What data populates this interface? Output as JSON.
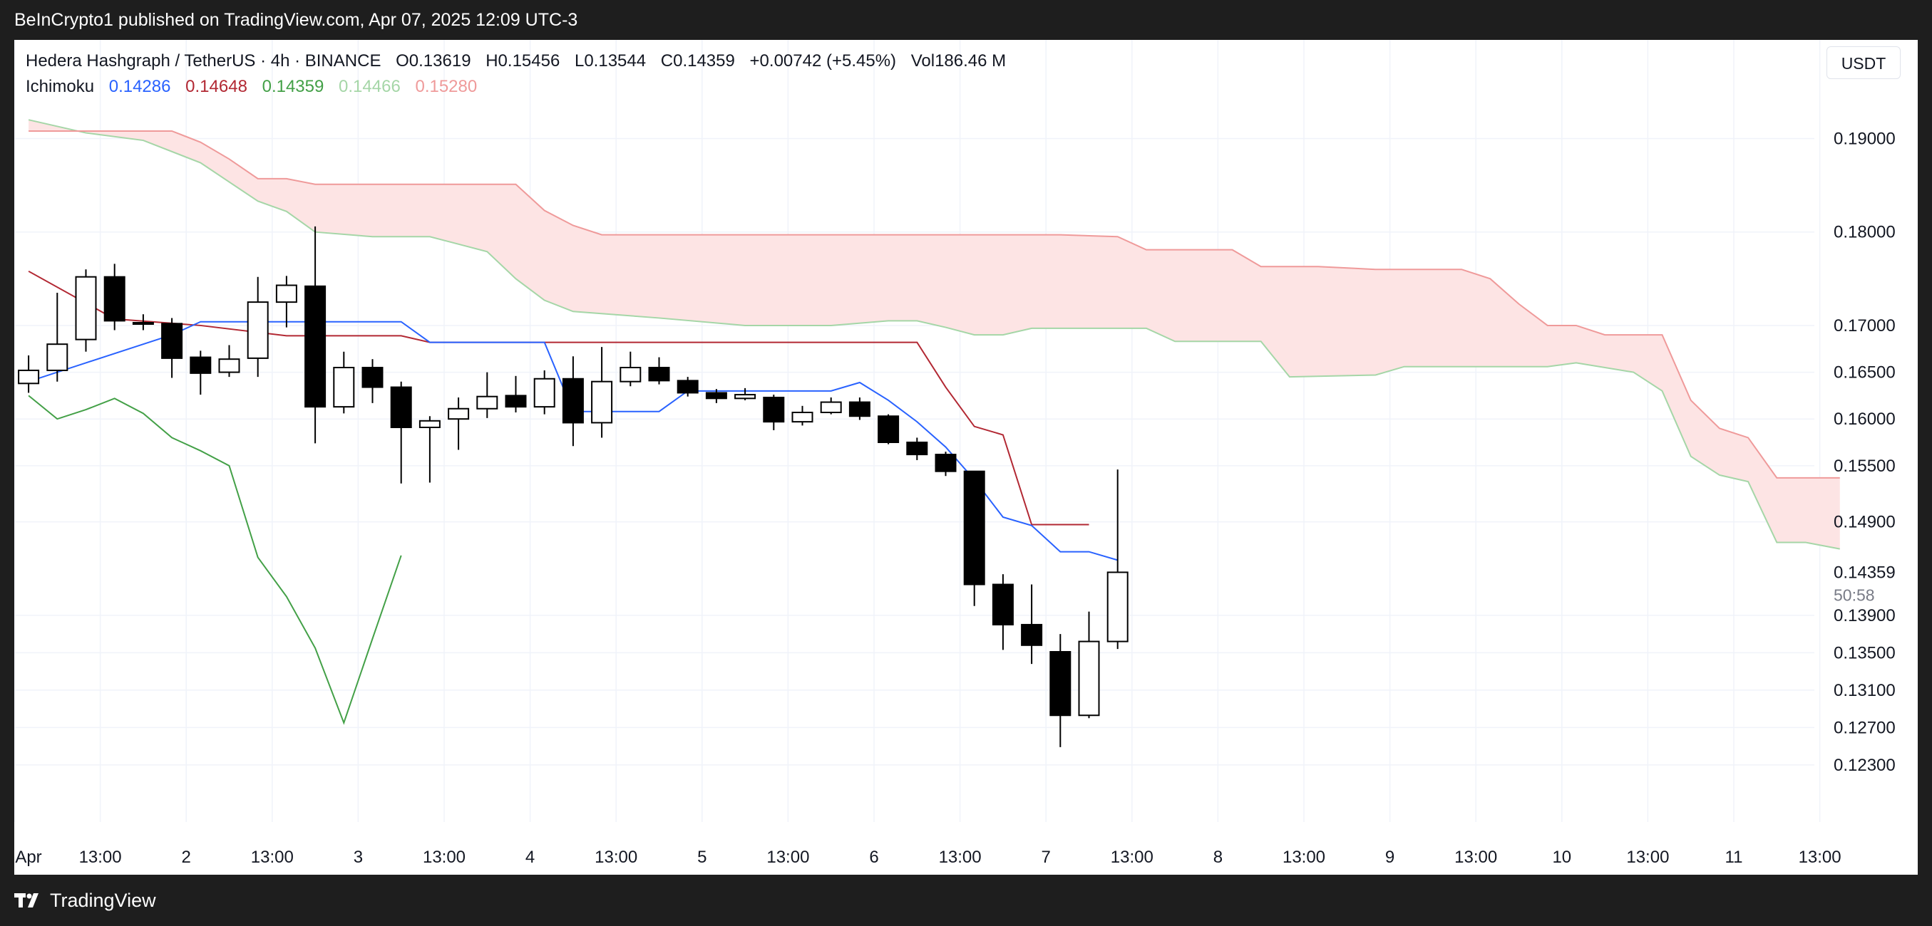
{
  "header": {
    "publish_info": "BeInCrypto1 published on TradingView.com, Apr 07, 2025 12:09 UTC-3"
  },
  "footer": {
    "brand": "TradingView",
    "brand_icon": "tradingview-logo-icon"
  },
  "legend": {
    "symbol": "Hedera Hashgraph / TetherUS · 4h · BINANCE",
    "open": "O0.13619",
    "high": "H0.15456",
    "low": "L0.13544",
    "close": "C0.14359",
    "change": "+0.00742 (+5.45%)",
    "volume": "Vol186.46 M",
    "indicator": "Ichimoku",
    "values": [
      "0.14286",
      "0.14648",
      "0.14359",
      "0.14466",
      "0.15280"
    ]
  },
  "currency_button": "USDT",
  "colors": {
    "conversion": "#2962ff",
    "base": "#b22833",
    "lagging": "#43a047",
    "span_a": "#a5d6a7",
    "span_b": "#ef9a9a",
    "cloud_fill": "#fde4e4",
    "candle_up": "#ffffff",
    "candle_down": "#000000"
  },
  "chart_data": {
    "type": "candlestick",
    "yaxis_ticks": [
      "0.19000",
      "0.18000",
      "0.17000",
      "0.16500",
      "0.16000",
      "0.15500",
      "0.14900",
      "0.13900",
      "0.13500",
      "0.13100",
      "0.12700",
      "0.12300"
    ],
    "ylim": [
      0.1175,
      0.1975
    ],
    "price_label": "0.14359",
    "countdown": "50:58",
    "xaxis_ticks": [
      {
        "label": "Apr",
        "x": -0.5
      },
      {
        "label": "13:00",
        "x": 2.5
      },
      {
        "label": "2",
        "x": 5.5
      },
      {
        "label": "13:00",
        "x": 8.5
      },
      {
        "label": "3",
        "x": 11.5
      },
      {
        "label": "13:00",
        "x": 14.5
      },
      {
        "label": "4",
        "x": 17.5
      },
      {
        "label": "13:00",
        "x": 20.5
      },
      {
        "label": "5",
        "x": 23.5
      },
      {
        "label": "13:00",
        "x": 26.5
      },
      {
        "label": "6",
        "x": 29.5
      },
      {
        "label": "13:00",
        "x": 32.5
      },
      {
        "label": "7",
        "x": 35.5
      },
      {
        "label": "13:00",
        "x": 38.5
      },
      {
        "label": "8",
        "x": 41.5
      },
      {
        "label": "13:00",
        "x": 44.5
      },
      {
        "label": "9",
        "x": 47.5
      },
      {
        "label": "13:00",
        "x": 50.5
      },
      {
        "label": "10",
        "x": 53.5
      },
      {
        "label": "13:00",
        "x": 56.5
      },
      {
        "label": "11",
        "x": 59.5
      },
      {
        "label": "13:00",
        "x": 62.5
      }
    ],
    "xlim": [
      0,
      63.2
    ],
    "candles": [
      {
        "o": 0.1638,
        "h": 0.1668,
        "l": 0.1628,
        "c": 0.1652
      },
      {
        "o": 0.1652,
        "h": 0.1735,
        "l": 0.164,
        "c": 0.168
      },
      {
        "o": 0.1685,
        "h": 0.176,
        "l": 0.1672,
        "c": 0.1752
      },
      {
        "o": 0.1752,
        "h": 0.1766,
        "l": 0.1695,
        "c": 0.1705
      },
      {
        "o": 0.1703,
        "h": 0.1712,
        "l": 0.1695,
        "c": 0.1702
      },
      {
        "o": 0.1702,
        "h": 0.1708,
        "l": 0.1644,
        "c": 0.1665
      },
      {
        "o": 0.1666,
        "h": 0.1673,
        "l": 0.1626,
        "c": 0.1649
      },
      {
        "o": 0.165,
        "h": 0.1679,
        "l": 0.1645,
        "c": 0.1664
      },
      {
        "o": 0.1665,
        "h": 0.1752,
        "l": 0.1645,
        "c": 0.1725
      },
      {
        "o": 0.1725,
        "h": 0.1753,
        "l": 0.1698,
        "c": 0.1743
      },
      {
        "o": 0.1742,
        "h": 0.1806,
        "l": 0.1574,
        "c": 0.1613
      },
      {
        "o": 0.1613,
        "h": 0.1672,
        "l": 0.1606,
        "c": 0.1655
      },
      {
        "o": 0.1655,
        "h": 0.1664,
        "l": 0.1617,
        "c": 0.1634
      },
      {
        "o": 0.1634,
        "h": 0.164,
        "l": 0.1531,
        "c": 0.1591
      },
      {
        "o": 0.1591,
        "h": 0.1603,
        "l": 0.1532,
        "c": 0.1598
      },
      {
        "o": 0.16,
        "h": 0.1623,
        "l": 0.1567,
        "c": 0.1611
      },
      {
        "o": 0.1611,
        "h": 0.165,
        "l": 0.1601,
        "c": 0.1624
      },
      {
        "o": 0.1625,
        "h": 0.1646,
        "l": 0.1607,
        "c": 0.1613
      },
      {
        "o": 0.1613,
        "h": 0.1652,
        "l": 0.1605,
        "c": 0.1643
      },
      {
        "o": 0.1643,
        "h": 0.1667,
        "l": 0.1571,
        "c": 0.1596
      },
      {
        "o": 0.1596,
        "h": 0.1677,
        "l": 0.158,
        "c": 0.164
      },
      {
        "o": 0.164,
        "h": 0.1672,
        "l": 0.1635,
        "c": 0.1655
      },
      {
        "o": 0.1655,
        "h": 0.1666,
        "l": 0.1637,
        "c": 0.1641
      },
      {
        "o": 0.1641,
        "h": 0.1645,
        "l": 0.1624,
        "c": 0.1628
      },
      {
        "o": 0.1628,
        "h": 0.1632,
        "l": 0.1617,
        "c": 0.1622
      },
      {
        "o": 0.1622,
        "h": 0.1633,
        "l": 0.162,
        "c": 0.1626
      },
      {
        "o": 0.1623,
        "h": 0.1626,
        "l": 0.1588,
        "c": 0.1597
      },
      {
        "o": 0.1597,
        "h": 0.1614,
        "l": 0.1593,
        "c": 0.1607
      },
      {
        "o": 0.1607,
        "h": 0.1623,
        "l": 0.1605,
        "c": 0.1618
      },
      {
        "o": 0.1618,
        "h": 0.1623,
        "l": 0.1599,
        "c": 0.1603
      },
      {
        "o": 0.1603,
        "h": 0.1605,
        "l": 0.1573,
        "c": 0.1575
      },
      {
        "o": 0.1575,
        "h": 0.158,
        "l": 0.1556,
        "c": 0.1562
      },
      {
        "o": 0.1562,
        "h": 0.1565,
        "l": 0.1539,
        "c": 0.1544
      },
      {
        "o": 0.1544,
        "h": 0.1544,
        "l": 0.14,
        "c": 0.1423
      },
      {
        "o": 0.1423,
        "h": 0.1434,
        "l": 0.1353,
        "c": 0.138
      },
      {
        "o": 0.138,
        "h": 0.1423,
        "l": 0.1338,
        "c": 0.1358
      },
      {
        "o": 0.1351,
        "h": 0.137,
        "l": 0.1249,
        "c": 0.1283
      },
      {
        "o": 0.1283,
        "h": 0.1394,
        "l": 0.128,
        "c": 0.1362
      },
      {
        "o": 0.1362,
        "h": 0.1546,
        "l": 0.1354,
        "c": 0.1436
      }
    ],
    "conversion_line": [
      [
        0,
        0.164
      ],
      [
        4,
        0.168
      ],
      [
        5,
        0.169
      ],
      [
        6,
        0.1704
      ],
      [
        10,
        0.1704
      ],
      [
        13,
        0.1704
      ],
      [
        14,
        0.1682
      ],
      [
        18,
        0.1682
      ],
      [
        19,
        0.1608
      ],
      [
        22,
        0.1608
      ],
      [
        23,
        0.163
      ],
      [
        28,
        0.163
      ],
      [
        29,
        0.1639
      ],
      [
        30,
        0.162
      ],
      [
        31,
        0.1597
      ],
      [
        32,
        0.157
      ],
      [
        33,
        0.1535
      ],
      [
        34,
        0.1495
      ],
      [
        35,
        0.1486
      ],
      [
        36,
        0.1458
      ],
      [
        37,
        0.1458
      ],
      [
        38,
        0.1449
      ]
    ],
    "base_line": [
      [
        0,
        0.1758
      ],
      [
        3,
        0.1707
      ],
      [
        6,
        0.17
      ],
      [
        9,
        0.1689
      ],
      [
        13,
        0.1689
      ],
      [
        14,
        0.1682
      ],
      [
        31,
        0.1682
      ],
      [
        32,
        0.1634
      ],
      [
        33,
        0.1592
      ],
      [
        34,
        0.1583
      ],
      [
        35,
        0.1487
      ],
      [
        37,
        0.1487
      ]
    ],
    "lagging_span": [
      [
        0,
        0.1625
      ],
      [
        1,
        0.16
      ],
      [
        2,
        0.161
      ],
      [
        3,
        0.1622
      ],
      [
        4,
        0.1606
      ],
      [
        5,
        0.158
      ],
      [
        6,
        0.1566
      ],
      [
        7,
        0.155
      ],
      [
        8,
        0.1452
      ],
      [
        9,
        0.141
      ],
      [
        10,
        0.1355
      ],
      [
        11,
        0.1275
      ],
      [
        12,
        0.1365
      ],
      [
        13,
        0.1454
      ]
    ],
    "span_a": [
      [
        0,
        0.192
      ],
      [
        2,
        0.1906
      ],
      [
        4,
        0.1898
      ],
      [
        6,
        0.1874
      ],
      [
        8,
        0.1833
      ],
      [
        9,
        0.1822
      ],
      [
        10,
        0.18
      ],
      [
        12,
        0.1795
      ],
      [
        14,
        0.1795
      ],
      [
        16,
        0.1779
      ],
      [
        17,
        0.175
      ],
      [
        18,
        0.1727
      ],
      [
        19,
        0.1715
      ],
      [
        22,
        0.1708
      ],
      [
        25,
        0.17
      ],
      [
        28,
        0.17
      ],
      [
        30,
        0.1705
      ],
      [
        31,
        0.1705
      ],
      [
        32,
        0.1698
      ],
      [
        33,
        0.169
      ],
      [
        34,
        0.169
      ],
      [
        35,
        0.1697
      ],
      [
        39,
        0.1697
      ],
      [
        40,
        0.1683
      ],
      [
        43,
        0.1683
      ],
      [
        44,
        0.1645
      ],
      [
        47,
        0.1647
      ],
      [
        48,
        0.1656
      ],
      [
        53,
        0.1656
      ],
      [
        54,
        0.166
      ],
      [
        56,
        0.165
      ],
      [
        57,
        0.163
      ],
      [
        58,
        0.156
      ],
      [
        59,
        0.154
      ],
      [
        60,
        0.1533
      ],
      [
        61,
        0.1468
      ],
      [
        62,
        0.1468
      ],
      [
        63.2,
        0.1461
      ]
    ],
    "span_b": [
      [
        0,
        0.1908
      ],
      [
        5,
        0.1908
      ],
      [
        6,
        0.1896
      ],
      [
        7,
        0.1878
      ],
      [
        8,
        0.1857
      ],
      [
        9,
        0.1857
      ],
      [
        10,
        0.1851
      ],
      [
        17,
        0.1851
      ],
      [
        18,
        0.1823
      ],
      [
        19,
        0.1807
      ],
      [
        20,
        0.1797
      ],
      [
        26,
        0.1797
      ],
      [
        36,
        0.1797
      ],
      [
        38,
        0.1795
      ],
      [
        39,
        0.1781
      ],
      [
        42,
        0.1781
      ],
      [
        43,
        0.1763
      ],
      [
        45,
        0.1763
      ],
      [
        47,
        0.176
      ],
      [
        50,
        0.176
      ],
      [
        51,
        0.175
      ],
      [
        52,
        0.1723
      ],
      [
        53,
        0.17
      ],
      [
        54,
        0.17
      ],
      [
        55,
        0.169
      ],
      [
        57,
        0.169
      ],
      [
        58,
        0.162
      ],
      [
        59,
        0.159
      ],
      [
        60,
        0.158
      ],
      [
        61,
        0.1537
      ],
      [
        63.2,
        0.1537
      ]
    ]
  }
}
